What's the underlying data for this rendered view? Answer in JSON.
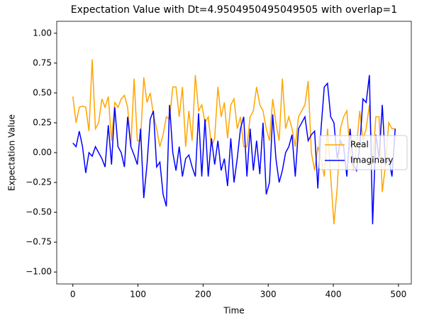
{
  "chart_data": {
    "type": "line",
    "title": "Expectation Value with Dt=4.9504950495049505 with overlap=1",
    "xlabel": "Time",
    "ylabel": "Expectation Value",
    "x": [
      0,
      4.95,
      9.9,
      14.85,
      19.8,
      24.75,
      29.7,
      34.65,
      39.6,
      44.55,
      49.5,
      54.45,
      59.4,
      64.35,
      69.3,
      74.25,
      79.2,
      84.15,
      89.1,
      94.05,
      99,
      103.95,
      108.9,
      113.85,
      118.8,
      123.75,
      128.7,
      133.65,
      138.6,
      143.55,
      148.5,
      153.45,
      158.4,
      163.35,
      168.3,
      173.25,
      178.2,
      183.15,
      188.1,
      193.05,
      198,
      202.95,
      207.9,
      212.85,
      217.8,
      222.75,
      227.7,
      232.65,
      237.6,
      242.55,
      247.5,
      252.45,
      257.4,
      262.35,
      267.3,
      272.25,
      277.2,
      282.15,
      287.1,
      292.05,
      297,
      301.95,
      306.9,
      311.85,
      316.8,
      321.75,
      326.7,
      331.65,
      336.6,
      341.55,
      346.5,
      351.45,
      356.4,
      361.35,
      366.3,
      371.25,
      376.2,
      381.15,
      386.1,
      391.05,
      396,
      400.95,
      405.9,
      410.85,
      415.8,
      420.75,
      425.7,
      430.65,
      435.6,
      440.55,
      445.5,
      450.45,
      455.4,
      460.35,
      465.3,
      470.25,
      475.2,
      480.15,
      485.1,
      490.05,
      495
    ],
    "series": [
      {
        "name": "Real",
        "color": "#ffa500",
        "values": [
          0.47,
          0.25,
          0.38,
          0.39,
          0.38,
          0.18,
          0.78,
          0.2,
          0.25,
          0.45,
          0.38,
          0.47,
          0.1,
          0.42,
          0.38,
          0.45,
          0.48,
          0.38,
          0.05,
          0.62,
          0.1,
          0.1,
          0.63,
          0.42,
          0.5,
          0.32,
          0.2,
          0.05,
          0.15,
          0.3,
          0.28,
          0.55,
          0.55,
          0.3,
          0.55,
          0.05,
          0.35,
          0.1,
          0.65,
          0.35,
          0.4,
          0.25,
          0.3,
          0.05,
          0.12,
          0.55,
          0.3,
          0.42,
          0.12,
          0.4,
          0.45,
          0.2,
          0.3,
          0.05,
          0.05,
          0.3,
          0.35,
          0.55,
          0.4,
          0.35,
          0.2,
          0.1,
          0.45,
          0.25,
          0.1,
          0.62,
          0.2,
          0.3,
          0.2,
          0.05,
          0.3,
          0.35,
          0.4,
          0.6,
          0.0,
          -0.15,
          0.05,
          -0.05,
          -0.2,
          0.2,
          -0.2,
          -0.6,
          -0.3,
          0.2,
          0.3,
          0.35,
          0.0,
          -0.15,
          0.05,
          0.35,
          0.1,
          0.2,
          0.4,
          -0.1,
          0.3,
          0.3,
          -0.33,
          -0.1,
          0.25,
          0.2,
          0.2
        ]
      },
      {
        "name": "Imaginary",
        "color": "#0000ff",
        "values": [
          0.08,
          0.05,
          0.18,
          0.05,
          -0.17,
          0.0,
          -0.03,
          0.05,
          0.0,
          -0.05,
          -0.12,
          0.23,
          -0.1,
          0.38,
          0.05,
          0.0,
          -0.12,
          0.3,
          0.05,
          -0.02,
          -0.1,
          0.2,
          -0.38,
          -0.1,
          0.28,
          0.35,
          -0.12,
          -0.08,
          -0.35,
          -0.45,
          0.4,
          0.0,
          -0.15,
          0.05,
          -0.2,
          -0.05,
          -0.02,
          -0.12,
          -0.2,
          0.33,
          -0.2,
          0.28,
          -0.2,
          0.12,
          -0.1,
          0.1,
          -0.15,
          -0.05,
          -0.28,
          0.12,
          -0.25,
          -0.05,
          0.2,
          0.3,
          -0.2,
          0.2,
          -0.15,
          0.1,
          -0.18,
          0.25,
          -0.35,
          -0.25,
          0.32,
          -0.05,
          -0.25,
          -0.15,
          0.0,
          0.05,
          0.15,
          -0.2,
          0.2,
          0.25,
          0.3,
          0.1,
          0.15,
          0.18,
          -0.3,
          0.2,
          0.55,
          0.58,
          0.3,
          0.25,
          -0.05,
          0.1,
          0.05,
          -0.2,
          0.2,
          -0.1,
          -0.15,
          0.05,
          0.45,
          0.42,
          0.65,
          -0.6,
          0.15,
          -0.05,
          0.4,
          -0.1,
          -0.05,
          -0.2,
          0.2
        ]
      }
    ],
    "xlim": [
      -24.75,
      519.75
    ],
    "ylim": [
      -1.1,
      1.1
    ],
    "xticks": [
      0,
      100,
      200,
      300,
      400,
      500
    ],
    "yticks": [
      {
        "value": -1,
        "label": "−1.00"
      },
      {
        "value": -0.75,
        "label": "−0.75"
      },
      {
        "value": -0.5,
        "label": "−0.50"
      },
      {
        "value": -0.25,
        "label": "−0.25"
      },
      {
        "value": 0,
        "label": "0.00"
      },
      {
        "value": 0.25,
        "label": "0.25"
      },
      {
        "value": 0.5,
        "label": "0.50"
      },
      {
        "value": 0.75,
        "label": "0.75"
      },
      {
        "value": 1,
        "label": "1.00"
      }
    ],
    "legend": "center right"
  }
}
